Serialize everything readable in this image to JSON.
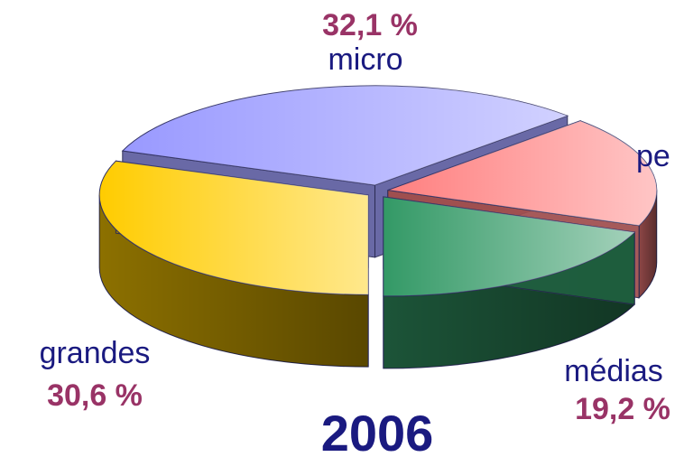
{
  "chart_data": {
    "type": "pie3d",
    "title": "2006",
    "categories": [
      "grandes",
      "micro",
      "pe",
      "médias"
    ],
    "values": [
      30.6,
      32.1,
      18.1,
      19.2
    ],
    "value_labels": [
      "30,6 %",
      "32,1 %",
      null,
      "19,2 %"
    ],
    "colors": [
      "#ffcc00",
      "#9999ff",
      "#ff7f7f",
      "#339966"
    ]
  }
}
